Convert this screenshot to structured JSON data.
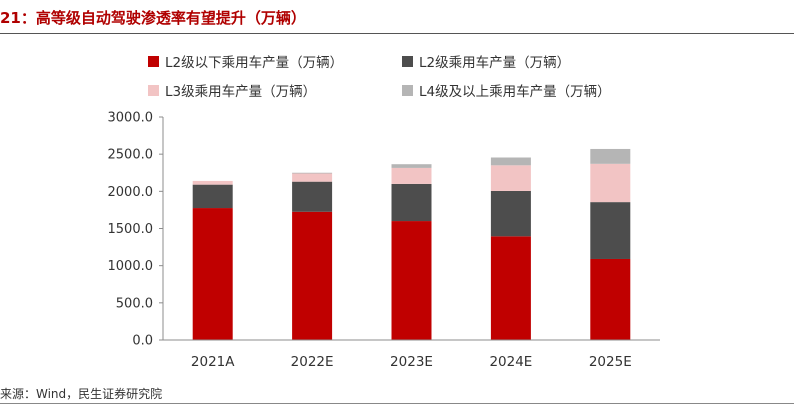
{
  "figure": {
    "title": "21：高等级自动驾驶渗透率有望提升（万辆）",
    "source": "来源：Wind，民生证券研究院"
  },
  "chart_data": {
    "type": "bar",
    "stacked": true,
    "categories": [
      "2021A",
      "2022E",
      "2023E",
      "2024E",
      "2025E"
    ],
    "ylim": [
      0,
      3000
    ],
    "yticks": [
      0,
      500,
      1000,
      1500,
      2000,
      2500,
      3000
    ],
    "ytick_labels": [
      "0.0",
      "500.0",
      "1000.0",
      "1500.0",
      "2000.0",
      "2500.0",
      "3000.0"
    ],
    "grid": false,
    "legend_position": "top",
    "series": [
      {
        "name": "L2级以下乘用车产量（万辆）",
        "color": "#c00000",
        "values": [
          1775,
          1725,
          1600,
          1395,
          1090
        ]
      },
      {
        "name": "L2级乘用车产量（万辆）",
        "color": "#4d4d4d",
        "values": [
          315,
          405,
          500,
          610,
          765
        ]
      },
      {
        "name": "L3级乘用车产量（万辆）",
        "color": "#f2c4c4",
        "values": [
          50,
          110,
          215,
          345,
          515
        ]
      },
      {
        "name": "L4级及以上乘用车产量（万辆）",
        "color": "#b5b5b5",
        "values": [
          0,
          10,
          50,
          105,
          200
        ]
      }
    ]
  }
}
